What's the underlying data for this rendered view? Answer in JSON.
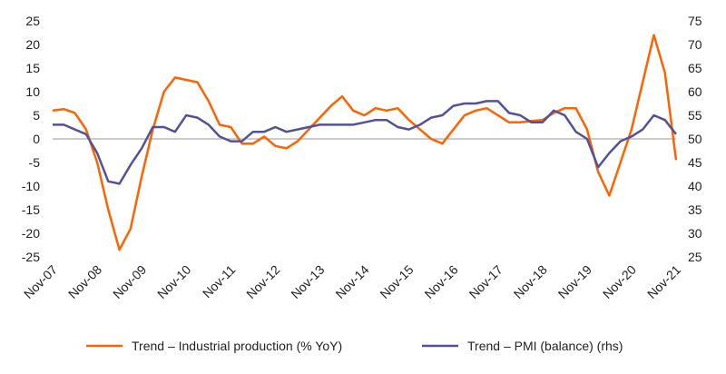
{
  "chart_data": {
    "type": "line",
    "categories": [
      "Nov-07",
      null,
      null,
      null,
      "Nov-08",
      null,
      null,
      null,
      "Nov-09",
      null,
      null,
      null,
      "Nov-10",
      null,
      null,
      null,
      "Nov-11",
      null,
      null,
      null,
      "Nov-12",
      null,
      null,
      null,
      "Nov-13",
      null,
      null,
      null,
      "Nov-14",
      null,
      null,
      null,
      "Nov-15",
      null,
      null,
      null,
      "Nov-16",
      null,
      null,
      null,
      "Nov-17",
      null,
      null,
      null,
      "Nov-18",
      null,
      null,
      null,
      "Nov-19",
      null,
      null,
      null,
      "Nov-20",
      null,
      null,
      null,
      "Nov-21"
    ],
    "series": [
      {
        "name": "Trend – Industrial production (% YoY)",
        "color": "#ff6200",
        "values": [
          6,
          6.3,
          5.5,
          2,
          -5,
          -15,
          -23.5,
          -19,
          -8,
          2,
          10,
          13,
          12.5,
          12,
          8,
          3,
          2.5,
          -1,
          -1,
          0.5,
          -1.5,
          -2,
          -0.5,
          2,
          4.5,
          7,
          9,
          6,
          5,
          6.5,
          6,
          6.5,
          4,
          2,
          0,
          -1,
          2,
          5,
          6,
          6.5,
          5,
          3.5,
          3.5,
          3.8,
          4,
          5.5,
          6.5,
          6.5,
          2,
          -7,
          -12,
          -5,
          2,
          12,
          22,
          14,
          -4.5
        ]
      },
      {
        "name": "Trend – PMI (balance) (rhs)",
        "color": "#525199",
        "axis": "y2",
        "values": [
          53,
          53,
          52,
          51,
          47,
          41,
          40.5,
          44.5,
          48,
          52.5,
          52.5,
          51.5,
          55,
          54.5,
          53,
          50.5,
          49.5,
          49.5,
          51.5,
          51.5,
          52.5,
          51.5,
          52,
          52.5,
          53,
          53,
          53,
          53,
          53.5,
          54,
          54,
          52.5,
          52,
          53,
          54.5,
          55,
          57,
          57.5,
          57.5,
          58,
          58,
          55.5,
          55,
          53.5,
          53.5,
          56,
          55,
          51.5,
          50,
          44,
          47,
          49.5,
          50.5,
          52,
          55,
          54,
          51
        ]
      }
    ],
    "ylim": [
      -25,
      25
    ],
    "yticks": [
      -25,
      -20,
      -15,
      -10,
      -5,
      0,
      5,
      10,
      15,
      20,
      25
    ],
    "y2lim": [
      25,
      75
    ],
    "y2ticks": [
      25,
      30,
      35,
      40,
      45,
      50,
      55,
      60,
      65,
      70,
      75
    ],
    "legend": "bottom"
  }
}
